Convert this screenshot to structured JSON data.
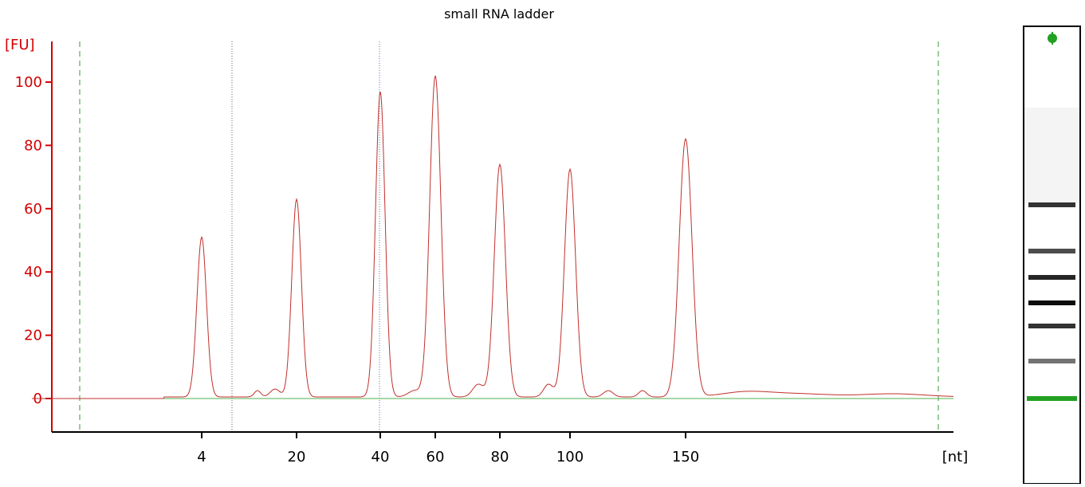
{
  "chart_data": {
    "type": "line",
    "title": "small RNA ladder",
    "ylabel": "[FU]",
    "xlabel": "[nt]",
    "ylim": [
      -10,
      112
    ],
    "yticks": [
      0,
      20,
      40,
      60,
      80,
      100
    ],
    "xtick_labels": [
      "4",
      "20",
      "40",
      "60",
      "80",
      "100",
      "150"
    ],
    "grid": false,
    "baseline_value": 0,
    "colors": {
      "axis_y": "#d40000",
      "trace": "#c0302c",
      "baseline": "#4fb04f",
      "marker_line": "#3a9a3a",
      "gel_marker": "#22a022"
    },
    "series": [
      {
        "values": [
          [
            4,
            50.5
          ],
          [
            20,
            62.5
          ],
          [
            40,
            96.5
          ],
          [
            60,
            101.5
          ],
          [
            80,
            73.5
          ],
          [
            100,
            72
          ],
          [
            150,
            81.5
          ]
        ]
      }
    ],
    "gel_lane": {
      "bands_nt": [
        4,
        20,
        40,
        60,
        80,
        100,
        150
      ],
      "marker_band": "lower marker"
    }
  }
}
